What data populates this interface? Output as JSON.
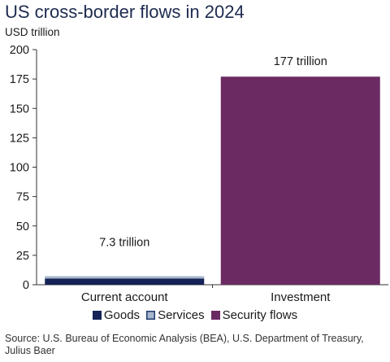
{
  "chart_data": {
    "type": "bar",
    "title": "US cross-border flows in 2024",
    "ylabel": "USD trillion",
    "xlabel": "",
    "ylim": [
      0,
      200
    ],
    "yticks": [
      0,
      25,
      50,
      75,
      100,
      125,
      150,
      175,
      200
    ],
    "grid": false,
    "legend_position": "bottom",
    "categories": [
      "Current account",
      "Investment"
    ],
    "series": [
      {
        "name": "Goods",
        "color": "#142257",
        "values": [
          5.3,
          0
        ]
      },
      {
        "name": "Services",
        "color": "#a9b7cc",
        "values": [
          2.0,
          0
        ]
      },
      {
        "name": "Security flows",
        "color": "#6b2b62",
        "values": [
          0,
          177
        ]
      }
    ],
    "data_labels": [
      "7.3 trillion",
      "177 trillion"
    ],
    "source": "Source: U.S. Bureau of Economic Analysis (BEA), U.S. Department of Treasury, Julius Baer"
  }
}
